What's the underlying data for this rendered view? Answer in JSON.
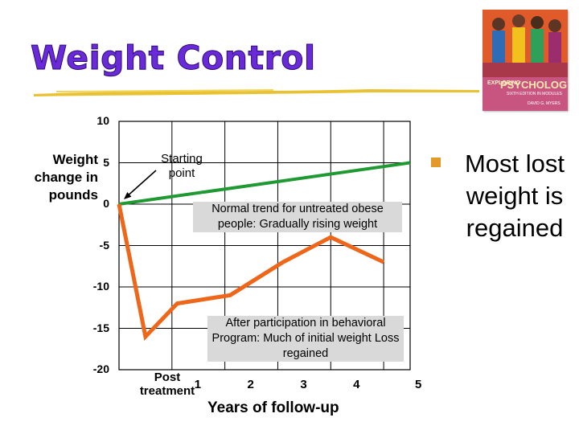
{
  "title": "Weight Control",
  "book_cover": {
    "prefix": "EXPLORING",
    "title": "PSYCHOLOGY",
    "subtitle": "SIXTH EDITION IN MODULES",
    "author": "DAVID G. MYERS"
  },
  "bullet": {
    "text": "Most lost weight is regained"
  },
  "chart_data": {
    "type": "line",
    "title": "",
    "xlabel": "Years of follow-up",
    "ylabel": "Weight change in pounds",
    "y_ticks": [
      "10",
      "5",
      "0",
      "-5",
      "-10",
      "-15",
      "-20"
    ],
    "ylim": [
      -20,
      10
    ],
    "x_tick_labels": [
      "Post treatment",
      "1",
      "2",
      "3",
      "4",
      "5"
    ],
    "xlim": [
      -0.5,
      5
    ],
    "grid": true,
    "series": [
      {
        "name": "Normal trend for untreated obese people: Gradually rising weight",
        "color": "#1f9a32",
        "x": [
          -0.5,
          5
        ],
        "y": [
          0,
          5
        ]
      },
      {
        "name": "After participation in behavioral Program: Much of initial weight Loss regained",
        "color": "#ee6619",
        "x": [
          -0.5,
          0,
          0.6,
          1.6,
          2.6,
          3.5,
          4.5
        ],
        "y": [
          0,
          -16,
          -12,
          -11,
          -7,
          -4,
          -7
        ]
      }
    ],
    "annotations": {
      "start": "Starting point",
      "normal": "Normal trend for untreated obese people: Gradually rising weight",
      "after": "After participation in behavioral Program: Much of initial weight Loss regained"
    }
  }
}
